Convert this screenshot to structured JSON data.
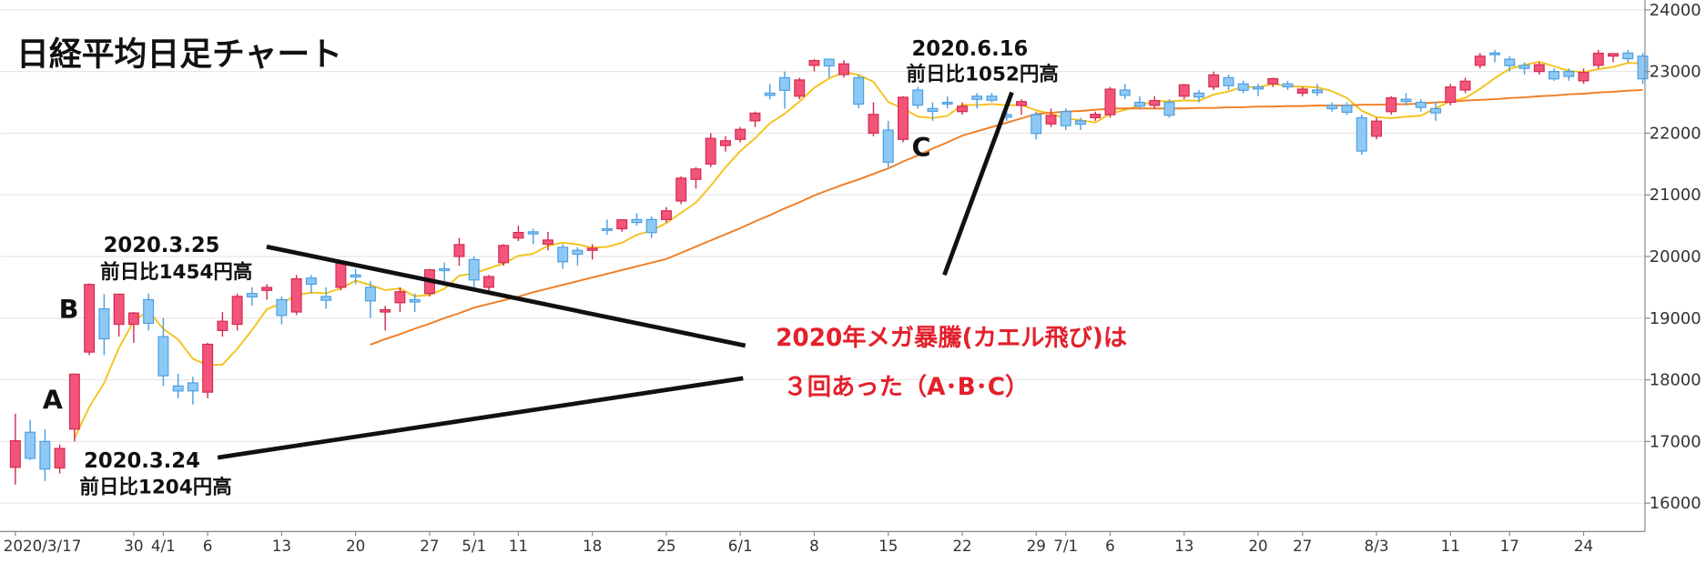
{
  "chart_data": {
    "type": "candlestick",
    "title": "日経平均日足チャート",
    "categories": [
      "2020/3/17",
      null,
      null,
      null,
      null,
      null,
      null,
      null,
      "30",
      null,
      "4/1",
      null,
      null,
      "6",
      null,
      null,
      null,
      null,
      "13",
      null,
      null,
      null,
      null,
      "20",
      null,
      null,
      null,
      null,
      "27",
      null,
      null,
      "5/1",
      null,
      null,
      "11",
      null,
      null,
      null,
      null,
      "18",
      null,
      null,
      null,
      null,
      "25",
      null,
      null,
      null,
      null,
      "6/1",
      null,
      null,
      null,
      null,
      "8",
      null,
      null,
      null,
      null,
      "15",
      null,
      null,
      null,
      null,
      "22",
      null,
      null,
      null,
      null,
      "29",
      null,
      "7/1",
      null,
      null,
      "6",
      null,
      null,
      null,
      null,
      "13",
      null,
      null,
      null,
      null,
      "20",
      null,
      null,
      "27",
      null,
      null,
      null,
      null,
      "8/3",
      null,
      null,
      null,
      null,
      "11",
      null,
      null,
      null,
      "17",
      null,
      null,
      null,
      null,
      "24",
      null,
      null,
      null,
      null
    ],
    "open": [
      16580,
      17150,
      17000,
      16570,
      17200,
      18450,
      19150,
      18900,
      18900,
      19300,
      18700,
      17900,
      17950,
      17800,
      18800,
      18900,
      19400,
      19450,
      19300,
      19100,
      19650,
      19350,
      19500,
      19700,
      19500,
      19100,
      19250,
      19300,
      19400,
      19800,
      20000,
      19950,
      19500,
      19900,
      20300,
      20400,
      20200,
      20150,
      20100,
      20100,
      20450,
      20450,
      20600,
      20600,
      20600,
      20900,
      21250,
      21500,
      21800,
      21900,
      22200,
      22650,
      22900,
      22600,
      23100,
      23200,
      22950,
      22900,
      22000,
      22050,
      21900,
      22700,
      22400,
      22500,
      22350,
      22600,
      22600,
      22300,
      22450,
      22300,
      22150,
      22350,
      22200,
      22250,
      22300,
      22700,
      22500,
      22450,
      22500,
      22600,
      22650,
      22750,
      22900,
      22800,
      22750,
      22800,
      22800,
      22650,
      22700,
      22450,
      22450,
      22250,
      21950,
      22350,
      22550,
      22500,
      22400,
      22500,
      22700,
      23100,
      23300,
      23200,
      23100,
      23000,
      23000,
      23000,
      22850,
      23100,
      23250,
      23300,
      23250
    ],
    "high": [
      17450,
      17350,
      17200,
      16950,
      18100,
      19564,
      19390,
      19400,
      19100,
      19400,
      19000,
      18100,
      18050,
      18600,
      19100,
      19400,
      19500,
      19550,
      19350,
      19700,
      19700,
      19500,
      19920,
      19800,
      19600,
      19200,
      19500,
      19400,
      19800,
      19900,
      20300,
      20000,
      19700,
      20200,
      20500,
      20450,
      20400,
      20200,
      20150,
      20200,
      20600,
      20600,
      20700,
      20650,
      20800,
      21300,
      21450,
      22000,
      21950,
      22100,
      22350,
      22800,
      23000,
      22900,
      23200,
      23200,
      23185,
      22950,
      22500,
      22200,
      22600,
      22750,
      22500,
      22600,
      22500,
      22650,
      22650,
      22350,
      22550,
      22350,
      22400,
      22400,
      22250,
      22350,
      22750,
      22800,
      22600,
      22600,
      22550,
      22800,
      22700,
      23000,
      22950,
      22850,
      22800,
      22900,
      22850,
      22750,
      22800,
      22500,
      22500,
      22300,
      22250,
      22600,
      22650,
      22550,
      22500,
      22800,
      22900,
      23300,
      23350,
      23250,
      23150,
      23150,
      23050,
      23050,
      23050,
      23350,
      23300,
      23350,
      23300
    ],
    "low": [
      16300,
      16700,
      16358,
      16480,
      17000,
      18400,
      18400,
      18700,
      18600,
      18800,
      17900,
      17700,
      17600,
      17700,
      18700,
      18800,
      19200,
      19300,
      18900,
      19050,
      19400,
      19150,
      19450,
      19550,
      19000,
      18800,
      19100,
      19100,
      19350,
      19600,
      19850,
      19500,
      19400,
      19850,
      20250,
      20200,
      20100,
      19800,
      19850,
      19950,
      20350,
      20400,
      20500,
      20300,
      20550,
      20850,
      21100,
      21450,
      21700,
      21850,
      22100,
      22550,
      22400,
      22550,
      23000,
      22900,
      22900,
      22400,
      21950,
      21450,
      21850,
      22400,
      22200,
      22400,
      22300,
      22400,
      22500,
      22200,
      22300,
      21900,
      22100,
      22050,
      22050,
      22200,
      22250,
      22550,
      22400,
      22400,
      22250,
      22550,
      22500,
      22700,
      22700,
      22650,
      22600,
      22750,
      22700,
      22600,
      22600,
      22350,
      22300,
      21650,
      21900,
      22300,
      22450,
      22350,
      22200,
      22450,
      22650,
      23050,
      23150,
      23000,
      22950,
      22950,
      22850,
      22850,
      22800,
      23050,
      23150,
      23150,
      22800
    ],
    "close": [
      17011,
      16726,
      16552,
      16887,
      18092,
      19546,
      18664,
      19389,
      19084,
      18917,
      18065,
      17819,
      17820,
      18576,
      18950,
      19353,
      19345,
      19498,
      19043,
      19638,
      19550,
      19290,
      19897,
      19669,
      19280,
      19137,
      19429,
      19262,
      19783,
      19771,
      20193,
      19619,
      19674,
      20179,
      20390,
      20366,
      20267,
      19914,
      20037,
      20133,
      20433,
      20595,
      20552,
      20388,
      20741,
      21271,
      21419,
      21916,
      21877,
      22062,
      22325,
      22613,
      22695,
      22863,
      23178,
      23091,
      23124,
      22472,
      22305,
      21530,
      22582,
      22455,
      22355,
      22478,
      22437,
      22549,
      22534,
      22259,
      22512,
      21995,
      22288,
      22122,
      22146,
      22306,
      22714,
      22614,
      22438,
      22529,
      22291,
      22784,
      22587,
      22945,
      22770,
      22696,
      22717,
      22884,
      22751,
      22715,
      22657,
      22397,
      22339,
      21710,
      22195,
      22573,
      22514,
      22418,
      22329,
      22750,
      22843,
      23249,
      23289,
      23096,
      23051,
      23110,
      22880,
      22920,
      22985,
      23296,
      23290,
      23208,
      22882
    ],
    "up_color": "#f2547a",
    "down_color": "#8ec9f6",
    "series": [
      {
        "color": "#f5c21b",
        "values": [
          null,
          null,
          null,
          null,
          17054,
          17561,
          17948,
          18516,
          18955,
          19120,
          18824,
          18655,
          18341,
          18239,
          18246,
          18504,
          18809,
          19144,
          19238,
          19375,
          19415,
          19404,
          19484,
          19609,
          19537,
          19455,
          19482,
          19355,
          19378,
          19476,
          19688,
          19726,
          19808,
          19887,
          20011,
          20046,
          20175,
          20223,
          20195,
          20143,
          20157,
          20222,
          20350,
          20420,
          20542,
          20709,
          20874,
          21147,
          21445,
          21709,
          21920,
          22159,
          22314,
          22512,
          22735,
          22888,
          22990,
          22946,
          22834,
          22504,
          22403,
          22269,
          22245,
          22280,
          22461,
          22455,
          22471,
          22451,
          22458,
          22370,
          22318,
          22235,
          22213,
          22171,
          22315,
          22380,
          22444,
          22520,
          22517,
          22531,
          22526,
          22627,
          22675,
          22756,
          22743,
          22802,
          22764,
          22753,
          22745,
          22681,
          22572,
          22364,
          22260,
          22243,
          22266,
          22282,
          22406,
          22517,
          22571,
          22718,
          22892,
          23045,
          23106,
          23159,
          23085,
          23011,
          22989,
          23038,
          23074,
          23140,
          23132
        ]
      },
      {
        "color": "#f07c22",
        "values": [
          null,
          null,
          null,
          null,
          null,
          null,
          null,
          null,
          null,
          null,
          null,
          null,
          null,
          null,
          null,
          null,
          null,
          null,
          null,
          null,
          null,
          null,
          null,
          null,
          18570,
          18660,
          18740,
          18830,
          18910,
          19000,
          19080,
          19170,
          19230,
          19290,
          19350,
          19420,
          19480,
          19540,
          19600,
          19660,
          19720,
          19780,
          19840,
          19900,
          19960,
          20060,
          20160,
          20260,
          20360,
          20460,
          20570,
          20670,
          20780,
          20880,
          20990,
          21080,
          21170,
          21250,
          21340,
          21430,
          21540,
          21640,
          21750,
          21850,
          21960,
          22030,
          22100,
          22170,
          22240,
          22310,
          22330,
          22350,
          22360,
          22380,
          22400,
          22400,
          22400,
          22400,
          22400,
          22400,
          22410,
          22410,
          22420,
          22420,
          22430,
          22430,
          22440,
          22440,
          22450,
          22450,
          22450,
          22460,
          22460,
          22470,
          22470,
          22480,
          22500,
          22510,
          22530,
          22540,
          22550,
          22570,
          22580,
          22600,
          22610,
          22630,
          22640,
          22660,
          22670,
          22690,
          22700
        ]
      }
    ],
    "ylim": [
      15540,
      24160
    ],
    "yticks": [
      16000,
      17000,
      18000,
      19000,
      20000,
      21000,
      22000,
      23000,
      24000
    ],
    "grid": true,
    "annotations": [
      "2020.3.25",
      "前日比1454円高",
      "2020.3.24",
      "前日比1204円高",
      "2020.6.16",
      "前日比1052円高",
      "A",
      "B",
      "C",
      "2020年メガ暴騰(カエル飛び)は",
      "３回あった（A･B･C）"
    ]
  }
}
